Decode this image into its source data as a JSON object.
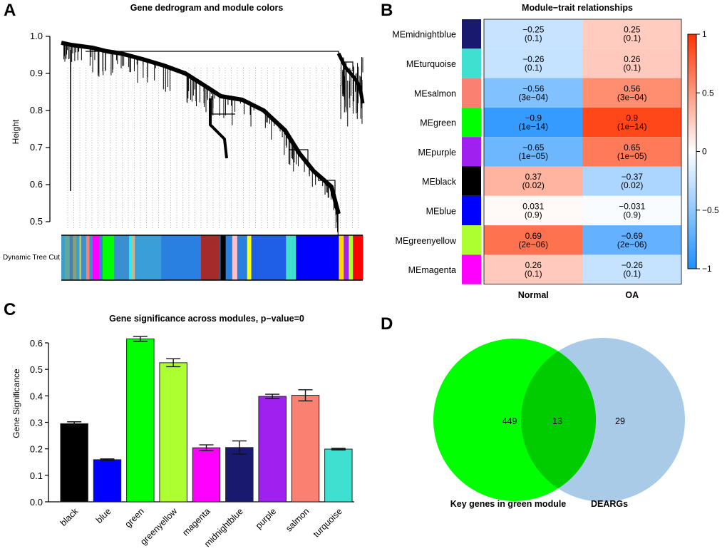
{
  "chart_data": [
    {
      "panel": "A",
      "type": "dendrogram",
      "title": "Gene dedrogram and module colors",
      "ylabel": "Height",
      "ylim": [
        0.5,
        1.0
      ],
      "yticks": [
        "0.5",
        "0.6",
        "0.7",
        "0.8",
        "0.9",
        "1.0"
      ],
      "yticks_values": [
        0.5,
        0.6,
        0.7,
        0.8,
        0.9,
        1.0
      ],
      "colorbar_label": "Dynamic Tree Cut",
      "merge_heights": [
        0.98,
        0.96,
        0.955,
        0.95,
        0.94,
        0.93,
        0.91,
        0.84,
        0.83,
        0.81,
        0.79,
        0.69,
        0.61,
        0.58,
        0.55,
        0.52,
        0.505
      ],
      "module_strip": [
        {
          "color": "#3a9fc9",
          "w": 2
        },
        {
          "color": "#5fa7a0",
          "w": 3
        },
        {
          "color": "#4a7fb0",
          "w": 2
        },
        {
          "color": "#8aa07a",
          "w": 2
        },
        {
          "color": "#3aa0d0",
          "w": 2
        },
        {
          "color": "#ddcc33",
          "w": 1
        },
        {
          "color": "#3a8fd0",
          "w": 3
        },
        {
          "color": "#fa8072",
          "w": 2
        },
        {
          "color": "#3a8fd0",
          "w": 2
        },
        {
          "color": "#ff00ff",
          "w": 4
        },
        {
          "color": "#3a7fd0",
          "w": 2
        },
        {
          "color": "#00ff00",
          "w": 7
        },
        {
          "color": "#3a8fd0",
          "w": 9
        },
        {
          "color": "#00ffff",
          "w": 1.5
        },
        {
          "color": "#d2b48c",
          "w": 2
        },
        {
          "color": "#3a9fd8",
          "w": 16
        },
        {
          "color": "#2a80e0",
          "w": 24
        },
        {
          "color": "#a52a2a",
          "w": 11
        },
        {
          "color": "#2a6090",
          "w": 1
        },
        {
          "color": "#000000",
          "w": 3
        },
        {
          "color": "#2a80e0",
          "w": 4
        },
        {
          "color": "#ffc0cb",
          "w": 3
        },
        {
          "color": "#2a80e0",
          "w": 6
        },
        {
          "color": "#ffff00",
          "w": 2.5
        },
        {
          "color": "#1f5fe8",
          "w": 21
        },
        {
          "color": "#40e0d0",
          "w": 6
        },
        {
          "color": "#0000ff",
          "w": 26
        },
        {
          "color": "#ffd700",
          "w": 3
        },
        {
          "color": "#a020f0",
          "w": 3
        },
        {
          "color": "#adff2f",
          "w": 2.5
        },
        {
          "color": "#ff0000",
          "w": 6
        }
      ]
    },
    {
      "panel": "B",
      "type": "heatmap",
      "title": "Module−trait relationships",
      "columns": [
        "Normal",
        "OA"
      ],
      "rows": [
        {
          "label": "MEmidnightblue",
          "color": "#191970",
          "cells": [
            {
              "r": -0.25,
              "p": "(0.1)",
              "text": "−0.25"
            },
            {
              "r": 0.25,
              "p": "(0.1)",
              "text": "0.25"
            }
          ]
        },
        {
          "label": "MEturquoise",
          "color": "#40e0d0",
          "cells": [
            {
              "r": -0.26,
              "p": "(0.1)",
              "text": "−0.26"
            },
            {
              "r": 0.26,
              "p": "(0.1)",
              "text": "0.26"
            }
          ]
        },
        {
          "label": "MEsalmon",
          "color": "#fa8072",
          "cells": [
            {
              "r": -0.56,
              "p": "(3e−04)",
              "text": "−0.56"
            },
            {
              "r": 0.56,
              "p": "(3e−04)",
              "text": "0.56"
            }
          ]
        },
        {
          "label": "MEgreen",
          "color": "#00ff00",
          "cells": [
            {
              "r": -0.9,
              "p": "(1e−14)",
              "text": "−0.9"
            },
            {
              "r": 0.9,
              "p": "(1e−14)",
              "text": "0.9"
            }
          ]
        },
        {
          "label": "MEpurple",
          "color": "#a020f0",
          "cells": [
            {
              "r": -0.65,
              "p": "(1e−05)",
              "text": "−0.65"
            },
            {
              "r": 0.65,
              "p": "(1e−05)",
              "text": "0.65"
            }
          ]
        },
        {
          "label": "MEblack",
          "color": "#000000",
          "cells": [
            {
              "r": 0.37,
              "p": "(0.02)",
              "text": "0.37"
            },
            {
              "r": -0.37,
              "p": "(0.02)",
              "text": "−0.37"
            }
          ]
        },
        {
          "label": "MEblue",
          "color": "#0000ff",
          "cells": [
            {
              "r": 0.031,
              "p": "(0.9)",
              "text": "0.031"
            },
            {
              "r": -0.031,
              "p": "(0.9)",
              "text": "−0.031"
            }
          ]
        },
        {
          "label": "MEgreenyellow",
          "color": "#adff2f",
          "cells": [
            {
              "r": 0.69,
              "p": "(2e−06)",
              "text": "0.69"
            },
            {
              "r": -0.69,
              "p": "(2e−06)",
              "text": "−0.69"
            }
          ]
        },
        {
          "label": "MEmagenta",
          "color": "#ff00ff",
          "cells": [
            {
              "r": 0.26,
              "p": "(0.1)",
              "text": "0.26"
            },
            {
              "r": -0.26,
              "p": "(0.1)",
              "text": "−0.26"
            }
          ]
        }
      ],
      "legend": {
        "range": [
          -1,
          1
        ],
        "ticks": [
          1,
          0.5,
          0,
          -0.5,
          -1
        ],
        "tick_labels": [
          "1",
          "0.5",
          "0",
          "−0.5",
          "−1"
        ],
        "neg_color": "#1e90ff",
        "zero_color": "#ffffff",
        "pos_color": "#ff3300",
        "placement": "right"
      }
    },
    {
      "panel": "C",
      "type": "bar",
      "title": "Gene significance across modules, p−value=0",
      "xlabel": "",
      "ylabel": "Gene Significance",
      "ylim": [
        0,
        0.6
      ],
      "yticks": [
        "0.0",
        "0.1",
        "0.2",
        "0.3",
        "0.4",
        "0.5",
        "0.6"
      ],
      "yticks_values": [
        0,
        0.1,
        0.2,
        0.3,
        0.4,
        0.5,
        0.6
      ],
      "categories": [
        "black",
        "blue",
        "green",
        "greenyellow",
        "magenta",
        "midnightblue",
        "purple",
        "salmon",
        "turquoise"
      ],
      "values": [
        0.295,
        0.159,
        0.615,
        0.525,
        0.204,
        0.205,
        0.398,
        0.402,
        0.199
      ],
      "errors": [
        0.007,
        0.003,
        0.009,
        0.015,
        0.011,
        0.025,
        0.008,
        0.021,
        0.003
      ],
      "colors": [
        "#000000",
        "#0000ff",
        "#00ff00",
        "#adff2f",
        "#ff00ff",
        "#191970",
        "#a020f0",
        "#fa8072",
        "#40e0d0"
      ]
    },
    {
      "panel": "D",
      "type": "venn",
      "sets": [
        {
          "label": "Key genes in green module",
          "only": 449,
          "color": "#00ff00"
        },
        {
          "label": "DEARGs",
          "only": 29,
          "color": "#a9cbe8"
        }
      ],
      "intersection": 13,
      "overlap_color": "#00cc00"
    }
  ],
  "panels": {
    "A": {
      "letter": "A"
    },
    "B": {
      "letter": "B"
    },
    "C": {
      "letter": "C"
    },
    "D": {
      "letter": "D"
    }
  }
}
